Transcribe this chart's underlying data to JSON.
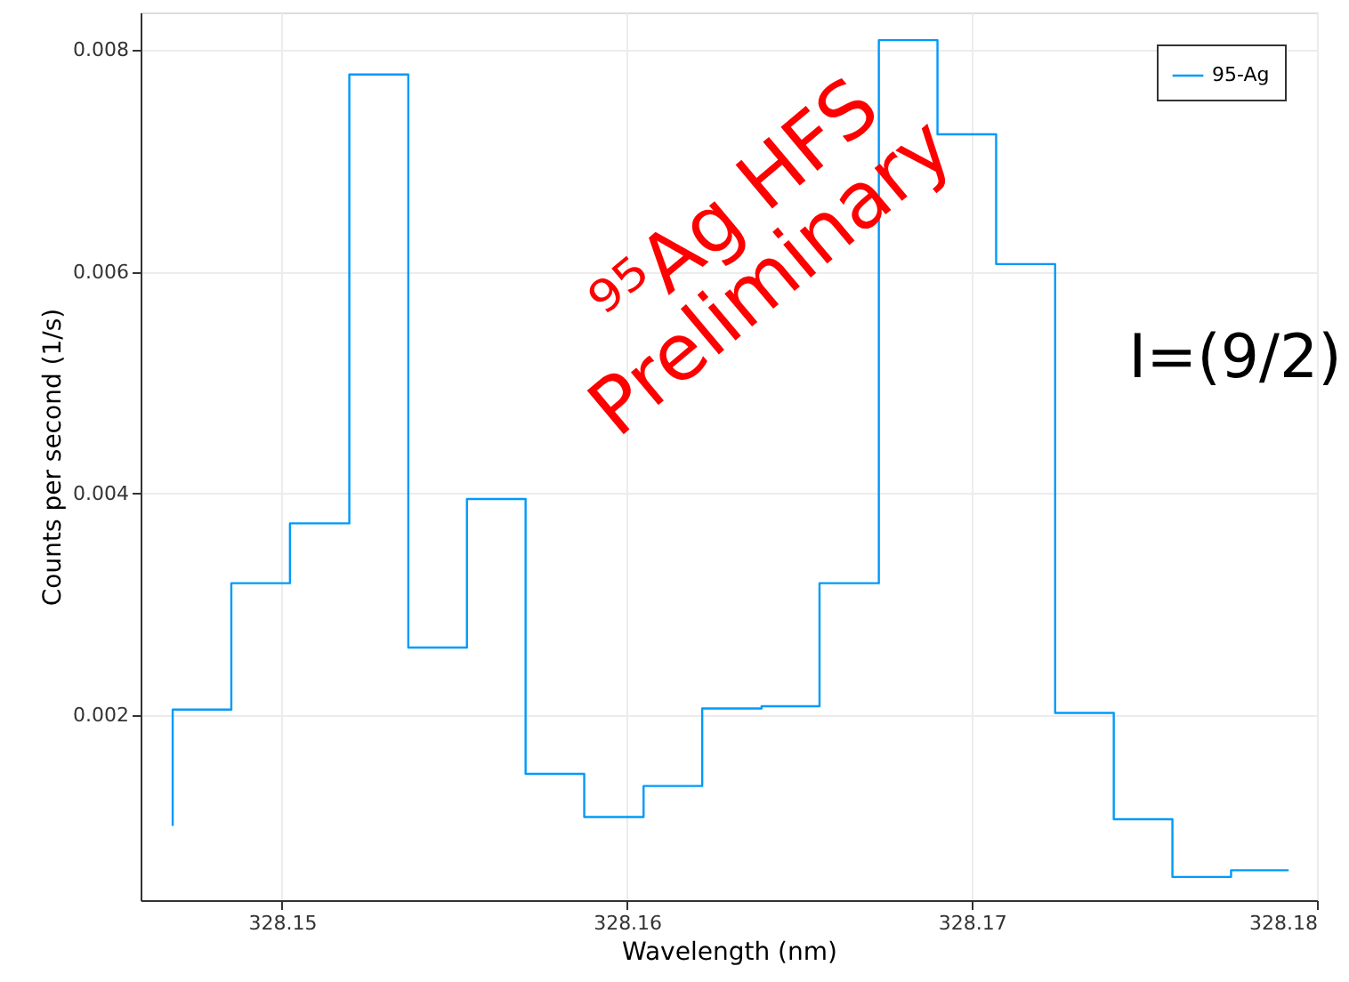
{
  "chart_data": {
    "type": "step",
    "xlabel": "Wavelength (nm)",
    "ylabel": "Counts per second (1/s)",
    "x": [
      328.14683,
      328.14853,
      328.15023,
      328.15195,
      328.15366,
      328.15536,
      328.15706,
      328.15876,
      328.16048,
      328.16218,
      328.1639,
      328.16558,
      328.1673,
      328.169,
      328.1707,
      328.17241,
      328.17411,
      328.17581,
      328.17751,
      328.17918
    ],
    "series": [
      {
        "name": "95-Ag",
        "color": "#009afa",
        "values": [
          0.001,
          0.00205,
          0.00319,
          0.00373,
          0.00778,
          0.00261,
          0.00395,
          0.00147,
          0.00108,
          0.00136,
          0.00206,
          0.00208,
          0.00319,
          0.00809,
          0.00724,
          0.00607,
          0.00202,
          0.00106,
          0.00054,
          0.0006
        ]
      }
    ],
    "xlim": [
      328.1459,
      328.18
    ],
    "xticks": [
      328.15,
      328.16,
      328.17,
      328.18
    ],
    "ylim": [
      0.00033,
      0.00834
    ],
    "yticks": [
      0.002,
      0.004,
      0.006,
      0.008
    ],
    "grid": true,
    "legend": "top right",
    "line_style": "solid",
    "annotations": [
      "⁹⁵Ag HFS",
      "Preliminary",
      "I=(9/2)"
    ]
  }
}
